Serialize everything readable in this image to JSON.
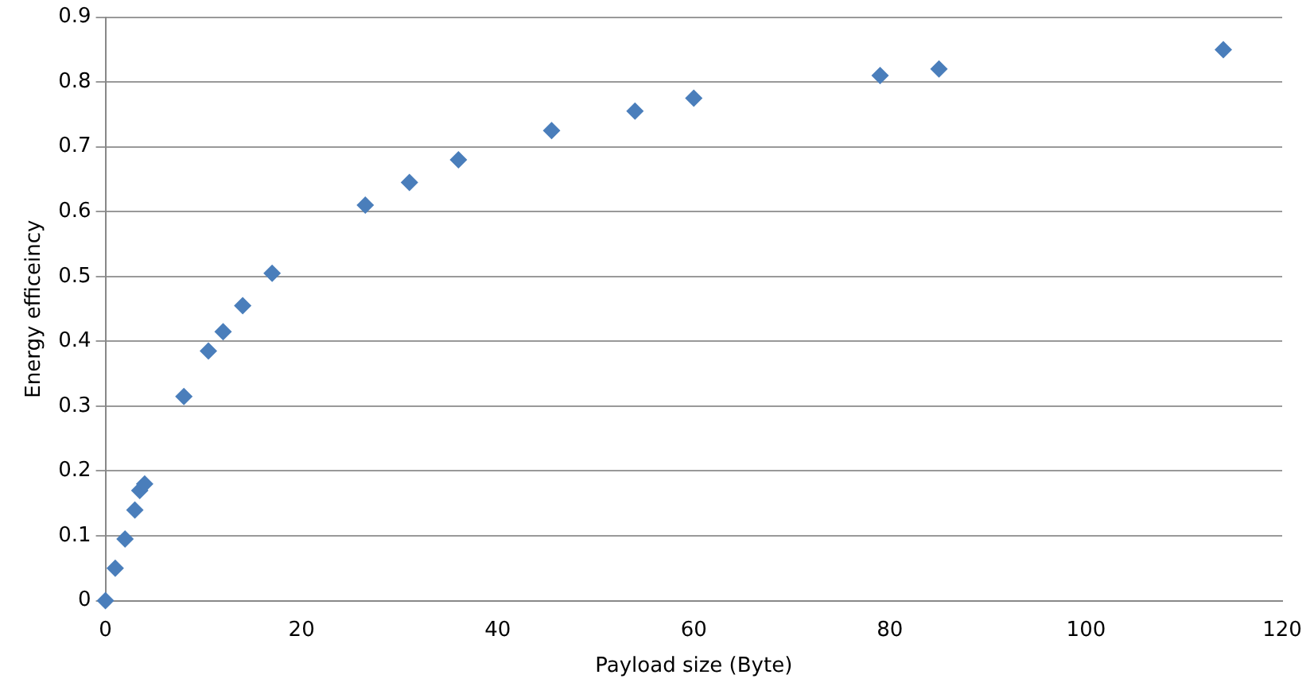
{
  "chart_data": {
    "type": "scatter",
    "xlabel": "Payload size (Byte)",
    "ylabel": "Energy efficeincy",
    "x": [
      0,
      1,
      2,
      3,
      3.5,
      4,
      8,
      10.5,
      12,
      14,
      17,
      26.5,
      31,
      36,
      45.5,
      54,
      60,
      79,
      85,
      114
    ],
    "series": [
      {
        "color": "#4a7ebb",
        "values": [
          0,
          0.05,
          0.095,
          0.14,
          0.17,
          0.18,
          0.315,
          0.385,
          0.415,
          0.455,
          0.505,
          0.61,
          0.645,
          0.68,
          0.725,
          0.755,
          0.775,
          0.81,
          0.82,
          0.85
        ]
      }
    ],
    "xlim": [
      0,
      120
    ],
    "xticks": [
      0,
      20,
      40,
      60,
      80,
      100,
      120
    ],
    "ylim": [
      0,
      0.9
    ],
    "yticks": [
      0,
      0.1,
      0.2,
      0.3,
      0.4,
      0.5,
      0.6,
      0.7,
      0.8,
      0.9
    ],
    "grid": "y",
    "marker": "diamond",
    "legend": false
  }
}
